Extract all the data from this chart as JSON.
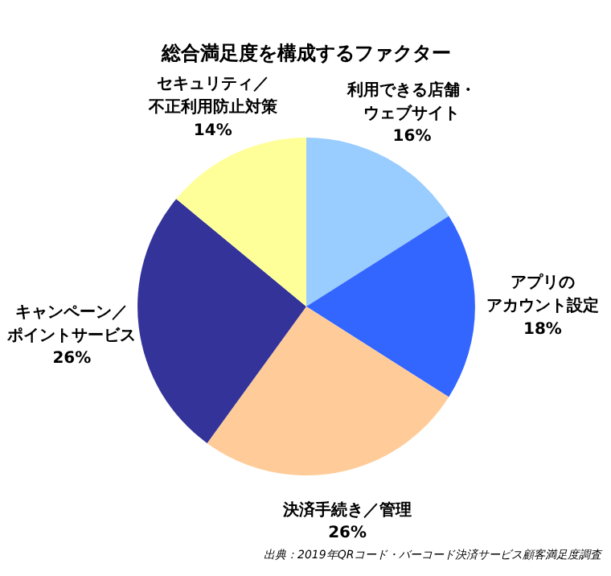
{
  "chart_data": {
    "type": "pie",
    "title": "総合満足度を構成するファクター",
    "categories": [
      "利用できる店舗・ウェブサイト",
      "アプリのアカウント設定",
      "決済手続き／管理",
      "キャンペーン／ポイントサービス",
      "セキュリティ／不正利用防止対策"
    ],
    "values": [
      16,
      18,
      26,
      26,
      14
    ],
    "value_labels": [
      "16%",
      "18%",
      "26%",
      "26%",
      "14%"
    ],
    "colors": [
      "#99ccff",
      "#3366ff",
      "#ffcc99",
      "#333399",
      "#ffff99"
    ],
    "annotations": [
      "出典：2019年QRコード・バーコード決済サービス顧客満足度調査"
    ]
  }
}
